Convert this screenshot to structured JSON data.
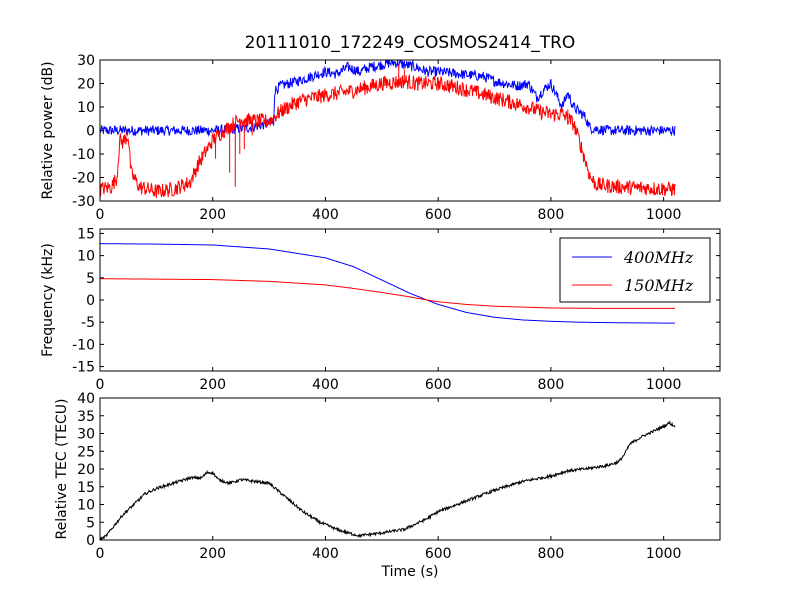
{
  "figure": {
    "title": "20111010_172249_COSMOS2414_TRO",
    "xlabel": "Time (s)"
  },
  "chart_data": [
    {
      "type": "line",
      "ylabel": "Relative power (dB)",
      "xlim": [
        0,
        1100
      ],
      "ylim": [
        -30,
        30
      ],
      "xticks": [
        0,
        200,
        400,
        600,
        800,
        1000
      ],
      "yticks": [
        -30,
        -20,
        -10,
        0,
        10,
        20,
        30
      ],
      "legend": null,
      "series": [
        {
          "color": "#0000ff",
          "noise": 2.2,
          "points": [
            [
              0,
              0
            ],
            [
              100,
              0
            ],
            [
              200,
              0
            ],
            [
              260,
              1
            ],
            [
              300,
              3
            ],
            [
              308,
              3
            ],
            [
              310,
              17
            ],
            [
              320,
              19
            ],
            [
              350,
              21
            ],
            [
              400,
              25
            ],
            [
              420,
              24
            ],
            [
              440,
              27
            ],
            [
              460,
              25
            ],
            [
              480,
              27
            ],
            [
              500,
              28
            ],
            [
              520,
              29
            ],
            [
              540,
              28
            ],
            [
              560,
              27
            ],
            [
              580,
              25
            ],
            [
              600,
              25
            ],
            [
              640,
              24
            ],
            [
              680,
              23
            ],
            [
              700,
              21
            ],
            [
              720,
              20
            ],
            [
              740,
              19
            ],
            [
              760,
              20
            ],
            [
              775,
              14
            ],
            [
              790,
              18
            ],
            [
              800,
              20
            ],
            [
              810,
              15
            ],
            [
              820,
              10
            ],
            [
              830,
              16
            ],
            [
              840,
              10
            ],
            [
              850,
              8
            ],
            [
              860,
              6
            ],
            [
              870,
              1
            ],
            [
              900,
              0
            ],
            [
              1020,
              0
            ]
          ]
        },
        {
          "color": "#ff0000",
          "noise": 3.2,
          "points": [
            [
              0,
              -25
            ],
            [
              20,
              -24
            ],
            [
              30,
              -20
            ],
            [
              35,
              -4
            ],
            [
              40,
              -5
            ],
            [
              50,
              -2
            ],
            [
              55,
              -18
            ],
            [
              70,
              -24
            ],
            [
              100,
              -26
            ],
            [
              130,
              -25
            ],
            [
              160,
              -22
            ],
            [
              175,
              -14
            ],
            [
              190,
              -8
            ],
            [
              200,
              -4
            ],
            [
              220,
              0
            ],
            [
              250,
              5
            ],
            [
              270,
              4
            ],
            [
              300,
              4
            ],
            [
              320,
              8
            ],
            [
              340,
              11
            ],
            [
              360,
              13
            ],
            [
              400,
              15
            ],
            [
              450,
              17
            ],
            [
              500,
              20
            ],
            [
              540,
              21
            ],
            [
              560,
              20
            ],
            [
              600,
              20
            ],
            [
              640,
              18
            ],
            [
              700,
              14
            ],
            [
              760,
              10
            ],
            [
              780,
              8
            ],
            [
              800,
              7
            ],
            [
              820,
              7
            ],
            [
              840,
              3
            ],
            [
              850,
              -4
            ],
            [
              860,
              -12
            ],
            [
              870,
              -20
            ],
            [
              880,
              -23
            ],
            [
              920,
              -24
            ],
            [
              1020,
              -25
            ]
          ],
          "spikes": [
            [
              35,
              -5
            ],
            [
              48,
              0
            ],
            [
              165,
              -20
            ],
            [
              180,
              -14
            ],
            [
              205,
              -12
            ],
            [
              230,
              -18
            ],
            [
              240,
              -24
            ],
            [
              248,
              -10
            ],
            [
              256,
              -8
            ],
            [
              270,
              -2
            ],
            [
              350,
              10
            ],
            [
              530,
              28
            ],
            [
              540,
              26
            ],
            [
              800,
              5
            ],
            [
              830,
              9
            ]
          ]
        }
      ]
    },
    {
      "type": "line",
      "ylabel": "Frequency (kHz)",
      "xlim": [
        0,
        1100
      ],
      "ylim": [
        -16,
        16
      ],
      "xticks": [
        0,
        200,
        400,
        600,
        800,
        1000
      ],
      "yticks": [
        -15,
        -10,
        -5,
        0,
        5,
        10,
        15
      ],
      "legend": "top-right",
      "series": [
        {
          "name": "$400 MHz$",
          "display": "400MHz",
          "color": "#0000ff",
          "points": [
            [
              0,
              12.7
            ],
            [
              100,
              12.6
            ],
            [
              200,
              12.4
            ],
            [
              300,
              11.5
            ],
            [
              400,
              9.5
            ],
            [
              450,
              7.5
            ],
            [
              500,
              4.5
            ],
            [
              550,
              1.5
            ],
            [
              580,
              0
            ],
            [
              600,
              -1.0
            ],
            [
              650,
              -2.8
            ],
            [
              700,
              -3.9
            ],
            [
              750,
              -4.5
            ],
            [
              800,
              -4.8
            ],
            [
              850,
              -5.0
            ],
            [
              900,
              -5.1
            ],
            [
              1000,
              -5.2
            ],
            [
              1020,
              -5.2
            ]
          ]
        },
        {
          "name": "$150 MHz$",
          "display": "150MHz",
          "color": "#ff0000",
          "points": [
            [
              0,
              4.8
            ],
            [
              100,
              4.7
            ],
            [
              200,
              4.6
            ],
            [
              300,
              4.2
            ],
            [
              400,
              3.4
            ],
            [
              450,
              2.6
            ],
            [
              500,
              1.7
            ],
            [
              550,
              0.7
            ],
            [
              580,
              0
            ],
            [
              600,
              -0.4
            ],
            [
              650,
              -1.0
            ],
            [
              700,
              -1.4
            ],
            [
              750,
              -1.6
            ],
            [
              800,
              -1.8
            ],
            [
              900,
              -1.9
            ],
            [
              1020,
              -1.9
            ]
          ]
        }
      ]
    },
    {
      "type": "line",
      "ylabel": "Relative TEC (TECU)",
      "xlim": [
        0,
        1100
      ],
      "ylim": [
        0,
        40
      ],
      "xticks": [
        0,
        200,
        400,
        600,
        800,
        1000
      ],
      "yticks": [
        0,
        5,
        10,
        15,
        20,
        25,
        30,
        35,
        40
      ],
      "legend": null,
      "series": [
        {
          "color": "#000000",
          "noise": 0.4,
          "points": [
            [
              0,
              0
            ],
            [
              10,
              1
            ],
            [
              20,
              3
            ],
            [
              40,
              7
            ],
            [
              60,
              10
            ],
            [
              80,
              13
            ],
            [
              100,
              14.5
            ],
            [
              130,
              16
            ],
            [
              160,
              17.5
            ],
            [
              180,
              17.5
            ],
            [
              190,
              19
            ],
            [
              200,
              19
            ],
            [
              210,
              17
            ],
            [
              230,
              16
            ],
            [
              250,
              17
            ],
            [
              300,
              16
            ],
            [
              330,
              12
            ],
            [
              360,
              8
            ],
            [
              390,
              5
            ],
            [
              420,
              3
            ],
            [
              440,
              2
            ],
            [
              460,
              1.2
            ],
            [
              500,
              2
            ],
            [
              540,
              3
            ],
            [
              560,
              4.5
            ],
            [
              580,
              6
            ],
            [
              600,
              8
            ],
            [
              650,
              11
            ],
            [
              700,
              14
            ],
            [
              750,
              16.5
            ],
            [
              800,
              18
            ],
            [
              830,
              19.5
            ],
            [
              860,
              20
            ],
            [
              880,
              20.5
            ],
            [
              900,
              21
            ],
            [
              920,
              22
            ],
            [
              930,
              24
            ],
            [
              940,
              27
            ],
            [
              960,
              29
            ],
            [
              980,
              30.5
            ],
            [
              1000,
              32
            ],
            [
              1010,
              33
            ],
            [
              1020,
              32
            ]
          ]
        }
      ]
    }
  ]
}
